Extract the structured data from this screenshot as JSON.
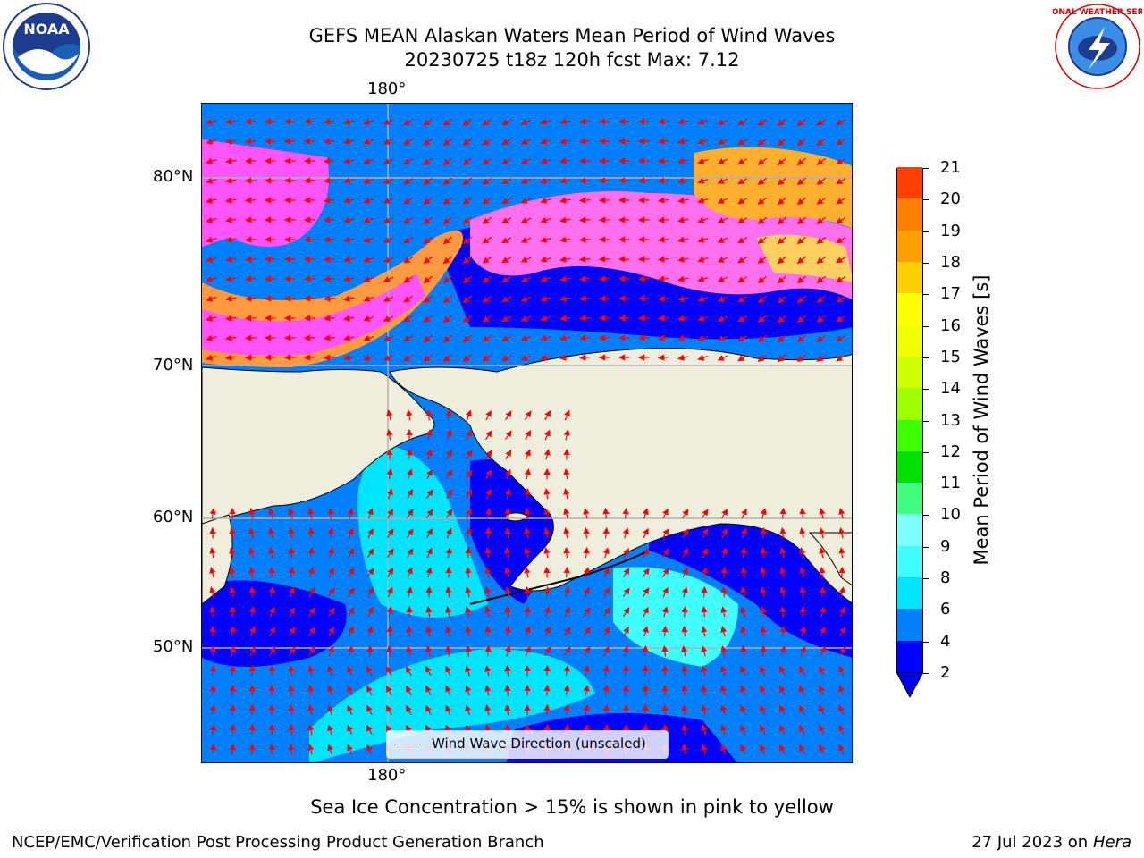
{
  "title_line1": "GEFS MEAN Alaskan Waters Mean Period of Wind Waves",
  "title_line2": "20230725 t18z 120h fcst   Max: 7.12",
  "logos": {
    "left": {
      "text": "NOAA",
      "icon": "noaa-logo"
    },
    "right": {
      "text": "NATIONAL WEATHER SERVICE",
      "icon": "nws-logo"
    }
  },
  "axes": {
    "top_lon_label": "180°",
    "bottom_lon_label": "180°",
    "lat_labels": [
      "80°N",
      "70°N",
      "60°N",
      "50°N"
    ]
  },
  "colorbar": {
    "label": "Mean Period of Wind Waves [s]",
    "ticks": [
      "2",
      "4",
      "6",
      "8",
      "9",
      "10",
      "11",
      "12",
      "13",
      "14",
      "15",
      "16",
      "17",
      "18",
      "19",
      "20",
      "21"
    ],
    "colors": [
      "#0000ff",
      "#0080ff",
      "#00e5ff",
      "#40ffff",
      "#80ffff",
      "#40ff80",
      "#00e000",
      "#40ff00",
      "#a0ff00",
      "#d0ff00",
      "#f0ff00",
      "#ffff00",
      "#ffd000",
      "#ffa000",
      "#ff8000",
      "#ff4000",
      "#ff0000"
    ],
    "under_color": "#0000e6"
  },
  "legend": {
    "text": "Wind Wave Direction (unscaled)"
  },
  "note": "Sea Ice Concentration > 15% is shown in pink to yellow",
  "footer_left": "NCEP/EMC/Verification Post Processing Product Generation Branch",
  "footer_right_prefix": "27 Jul 2023 on ",
  "footer_right_host": "Hera",
  "colors": {
    "land": "#efeedd",
    "grid": "#b0b0b0",
    "arrow": "#ff0000",
    "ice_pink": "#ff55ff",
    "ice_orange": "#ffb030",
    "deep_blue": "#0000ff",
    "mid_blue": "#0080ff",
    "cyan": "#00e5ff",
    "light_cyan": "#60ffff"
  }
}
